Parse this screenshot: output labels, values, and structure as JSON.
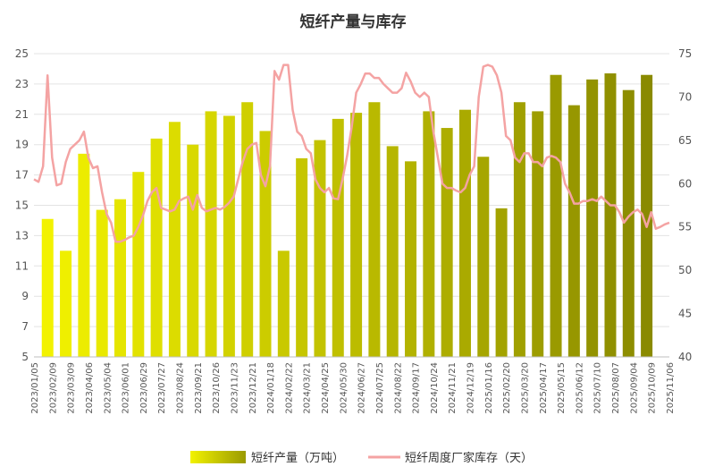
{
  "chart_data": {
    "type": "bar",
    "title": "短纤产量与库存",
    "xlabel": "",
    "ylabel": "",
    "ylim": [
      5,
      25
    ],
    "y2lim": [
      40,
      75
    ],
    "y_ticks": [
      5,
      7,
      9,
      11,
      13,
      15,
      17,
      19,
      21,
      23,
      25
    ],
    "y2_ticks": [
      40,
      45,
      50,
      55,
      60,
      65,
      70,
      75
    ],
    "grid": true,
    "legend_position": "bottom",
    "x_labels": [
      "2023/01/05",
      "2023/02/09",
      "2023/03/09",
      "2023/04/06",
      "2023/05/04",
      "2023/06/01",
      "2023/06/29",
      "2023/07/27",
      "2023/08/24",
      "2023/09/21",
      "2023/10/26",
      "2023/11/23",
      "2023/12/21",
      "2024/01/18",
      "2024/02/22",
      "2024/03/21",
      "2024/04/25",
      "2024/05/30",
      "2024/06/27",
      "2024/07/25",
      "2024/08/22",
      "2024/09/17",
      "2024/10/24",
      "2024/11/21",
      "2024/12/19",
      "2025/01/16",
      "2025/02/20",
      "2025/03/20",
      "2025/04/17",
      "2025/05/15",
      "2025/06/12",
      "2025/07/10",
      "2025/08/07",
      "2025/09/04",
      "2025/10/09",
      "2025/11/06"
    ],
    "bar_series": {
      "name": "短纤产量（万吨）",
      "color_start": "#f2f200",
      "color_end": "#8a8a00",
      "values": [
        14.1,
        12.0,
        18.4,
        14.7,
        15.4,
        17.2,
        19.4,
        20.5,
        19.0,
        21.2,
        20.9,
        21.8,
        19.9,
        12.0,
        18.1,
        19.3,
        20.7,
        21.1,
        21.8,
        18.9,
        17.9,
        21.2,
        20.1,
        21.3,
        18.2,
        14.8,
        21.8,
        21.2,
        23.6,
        21.6,
        23.3,
        23.7,
        22.6,
        23.6
      ],
      "x_positions": [
        0.75,
        1.75,
        2.75,
        3.75,
        4.75,
        5.75,
        6.75,
        7.75,
        8.75,
        9.75,
        10.75,
        11.75,
        12.75,
        13.75,
        14.75,
        15.75,
        16.75,
        17.75,
        18.75,
        19.75,
        20.75,
        21.75,
        22.75,
        23.75,
        24.75,
        25.75,
        26.75,
        27.75,
        28.75,
        29.75,
        30.75,
        31.75,
        32.75,
        33.75
      ]
    },
    "line_series": {
      "name": "短纤周度厂家库存（天）",
      "color": "#f4a3a3",
      "x": [
        0,
        0.25,
        0.5,
        0.75,
        1,
        1.25,
        1.5,
        1.75,
        2,
        2.25,
        2.5,
        2.75,
        3,
        3.25,
        3.5,
        3.75,
        4,
        4.25,
        4.5,
        4.75,
        5,
        5.25,
        5.5,
        5.75,
        6,
        6.25,
        6.5,
        6.75,
        7,
        7.25,
        7.5,
        7.75,
        8,
        8.25,
        8.5,
        8.75,
        9,
        9.25,
        9.5,
        9.75,
        10,
        10.25,
        10.5,
        10.75,
        11,
        11.25,
        11.5,
        11.75,
        12,
        12.25,
        12.5,
        12.75,
        13,
        13.25,
        13.5,
        13.75,
        14,
        14.25,
        14.5,
        14.75,
        15,
        15.25,
        15.5,
        15.75,
        16,
        16.25,
        16.5,
        16.75,
        17,
        17.25,
        17.5,
        17.75,
        18,
        18.25,
        18.5,
        18.75,
        19,
        19.25,
        19.5,
        19.75,
        20,
        20.25,
        20.5,
        20.75,
        21,
        21.25,
        21.5,
        21.75,
        22,
        22.25,
        22.5,
        22.75,
        23,
        23.25,
        23.5,
        23.75,
        24,
        24.25,
        24.5,
        24.75,
        25,
        25.25,
        25.5,
        25.75,
        26,
        26.25,
        26.5,
        26.75,
        27,
        27.25,
        27.5,
        27.75,
        28,
        28.25,
        28.5,
        28.75,
        29,
        29.25,
        29.5,
        29.75,
        30,
        30.25,
        30.5,
        30.75,
        31,
        31.25,
        31.5,
        31.75,
        32,
        32.25,
        32.5,
        32.75,
        33,
        33.25,
        33.5,
        33.75,
        34,
        34.25,
        34.5,
        34.75,
        35
      ],
      "values": [
        60.5,
        60.2,
        62,
        72.5,
        63,
        59.8,
        60,
        62.5,
        64,
        64.5,
        65,
        66,
        63,
        61.8,
        62,
        59,
        56.5,
        55.5,
        53.3,
        53.3,
        53.5,
        53.8,
        54,
        55,
        56.3,
        58,
        59,
        59.5,
        57.2,
        57,
        56.8,
        57,
        58,
        58.3,
        58.5,
        57,
        58.7,
        57.2,
        56.8,
        57,
        57.2,
        57,
        57.3,
        57.8,
        58.5,
        60.5,
        62.5,
        64,
        64.5,
        64.7,
        61,
        59.7,
        62,
        73,
        72,
        73.7,
        73.7,
        68.5,
        66,
        65.5,
        64,
        63.5,
        60.5,
        59.5,
        59,
        59.5,
        58.3,
        58.2,
        60.5,
        63.2,
        66.5,
        70.5,
        71.5,
        72.7,
        72.7,
        72.2,
        72.2,
        71.5,
        71,
        70.5,
        70.5,
        71,
        72.8,
        71.8,
        70.5,
        70,
        70.5,
        70,
        66,
        63,
        60,
        59.5,
        59.5,
        59.2,
        59,
        59.5,
        61,
        62,
        70,
        73.5,
        73.7,
        73.5,
        72.5,
        70.5,
        65.5,
        65,
        63,
        62.5,
        63.5,
        63.5,
        62.5,
        62.5,
        62,
        63,
        63.2,
        63,
        62.5,
        60,
        59,
        57.7,
        57.7,
        58,
        58,
        58.2,
        58,
        58.5,
        58,
        57.5,
        57.5,
        56.7,
        55.5,
        56.2,
        56.7,
        57,
        56.5,
        55,
        56.7,
        54.8,
        55,
        55.3,
        55.5
      ]
    }
  }
}
